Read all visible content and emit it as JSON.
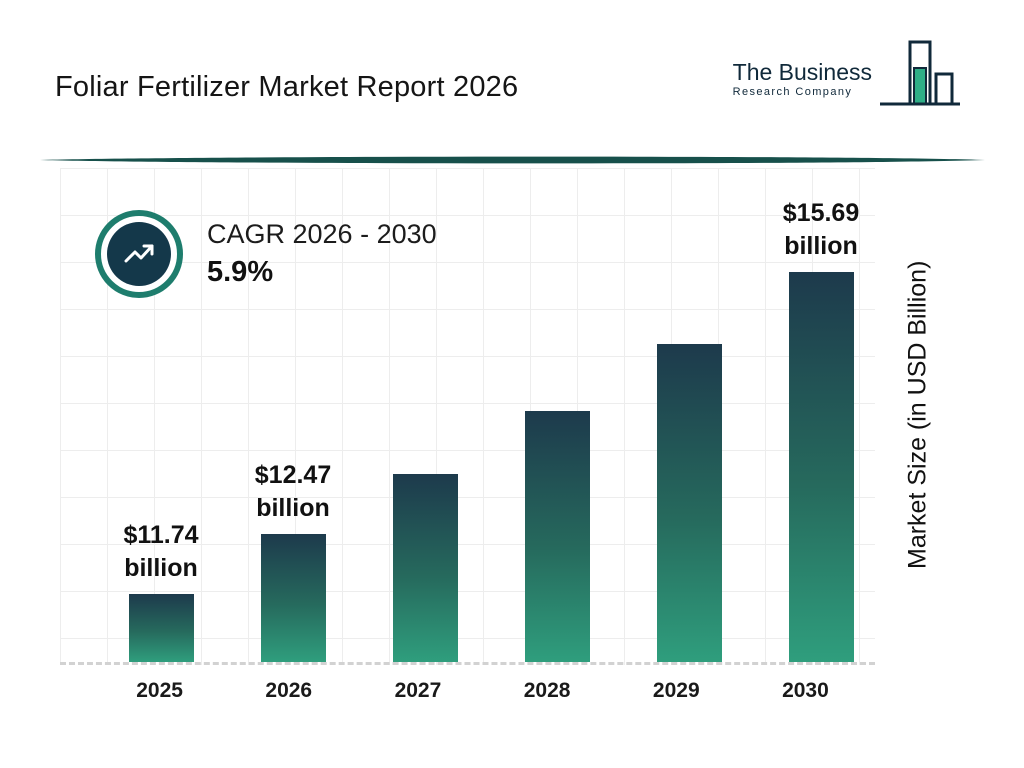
{
  "header": {
    "title": "Foliar Fertilizer Market Report 2026",
    "logo": {
      "line1": "The Business",
      "line2": "Research Company"
    }
  },
  "cagr": {
    "label": "CAGR 2026 - 2030",
    "value": "5.9%"
  },
  "chart_data": {
    "type": "bar",
    "title": "Foliar Fertilizer Market Report 2026",
    "categories": [
      "2025",
      "2026",
      "2027",
      "2028",
      "2029",
      "2030"
    ],
    "values": [
      11.74,
      12.47,
      13.21,
      13.98,
      14.81,
      15.69
    ],
    "bar_labels": [
      "$11.74 billion",
      "$12.47 billion",
      "",
      "",
      "",
      "$15.69 billion"
    ],
    "xlabel": "",
    "ylabel": "Market Size (in USD Billion)",
    "axis_min": 10.9,
    "axis_max": 15.69,
    "grid": true,
    "legend": false,
    "colors": {
      "bar_gradient_top": "#1d3a4c",
      "bar_gradient_bottom": "#2f9e7d",
      "accent_teal": "#1e7d6d",
      "badge_navy": "#14384a",
      "divider": "#17504b"
    }
  }
}
